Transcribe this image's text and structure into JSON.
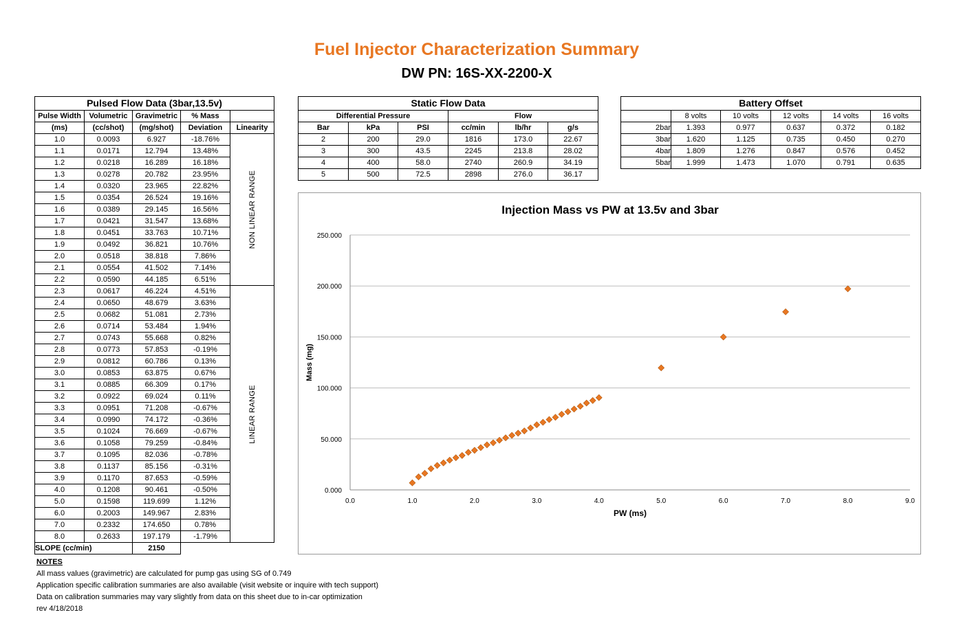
{
  "header": {
    "title": "Fuel Injector Characterization Summary",
    "subtitle": "DW PN: 16S-XX-2200-X"
  },
  "pulsed": {
    "title": "Pulsed Flow Data (3bar,13.5v)",
    "headers_top": [
      "Pulse Width",
      "Volumetric",
      "Gravimetric",
      "% Mass",
      ""
    ],
    "headers_bottom": [
      "(ms)",
      "(cc/shot)",
      "(mg/shot)",
      "Deviation",
      "Linearity"
    ],
    "non_linear_label": "NON LINEAR RANGE",
    "linear_label": "LINEAR RANGE",
    "rows": [
      [
        "1.0",
        "0.0093",
        "6.927",
        "-18.76%"
      ],
      [
        "1.1",
        "0.0171",
        "12.794",
        "13.48%"
      ],
      [
        "1.2",
        "0.0218",
        "16.289",
        "16.18%"
      ],
      [
        "1.3",
        "0.0278",
        "20.782",
        "23.95%"
      ],
      [
        "1.4",
        "0.0320",
        "23.965",
        "22.82%"
      ],
      [
        "1.5",
        "0.0354",
        "26.524",
        "19.16%"
      ],
      [
        "1.6",
        "0.0389",
        "29.145",
        "16.56%"
      ],
      [
        "1.7",
        "0.0421",
        "31.547",
        "13.68%"
      ],
      [
        "1.8",
        "0.0451",
        "33.763",
        "10.71%"
      ],
      [
        "1.9",
        "0.0492",
        "36.821",
        "10.76%"
      ],
      [
        "2.0",
        "0.0518",
        "38.818",
        "7.86%"
      ],
      [
        "2.1",
        "0.0554",
        "41.502",
        "7.14%"
      ],
      [
        "2.2",
        "0.0590",
        "44.185",
        "6.51%"
      ],
      [
        "2.3",
        "0.0617",
        "46.224",
        "4.51%"
      ],
      [
        "2.4",
        "0.0650",
        "48.679",
        "3.63%"
      ],
      [
        "2.5",
        "0.0682",
        "51.081",
        "2.73%"
      ],
      [
        "2.6",
        "0.0714",
        "53.484",
        "1.94%"
      ],
      [
        "2.7",
        "0.0743",
        "55.668",
        "0.82%"
      ],
      [
        "2.8",
        "0.0773",
        "57.853",
        "-0.19%"
      ],
      [
        "2.9",
        "0.0812",
        "60.786",
        "0.13%"
      ],
      [
        "3.0",
        "0.0853",
        "63.875",
        "0.67%"
      ],
      [
        "3.1",
        "0.0885",
        "66.309",
        "0.17%"
      ],
      [
        "3.2",
        "0.0922",
        "69.024",
        "0.11%"
      ],
      [
        "3.3",
        "0.0951",
        "71.208",
        "-0.67%"
      ],
      [
        "3.4",
        "0.0990",
        "74.172",
        "-0.36%"
      ],
      [
        "3.5",
        "0.1024",
        "76.669",
        "-0.67%"
      ],
      [
        "3.6",
        "0.1058",
        "79.259",
        "-0.84%"
      ],
      [
        "3.7",
        "0.1095",
        "82.036",
        "-0.78%"
      ],
      [
        "3.8",
        "0.1137",
        "85.156",
        "-0.31%"
      ],
      [
        "3.9",
        "0.1170",
        "87.653",
        "-0.59%"
      ],
      [
        "4.0",
        "0.1208",
        "90.461",
        "-0.50%"
      ],
      [
        "5.0",
        "0.1598",
        "119.699",
        "1.12%"
      ],
      [
        "6.0",
        "0.2003",
        "149.967",
        "2.83%"
      ],
      [
        "7.0",
        "0.2332",
        "174.650",
        "0.78%"
      ],
      [
        "8.0",
        "0.2633",
        "197.179",
        "-1.79%"
      ]
    ],
    "slope_label": "SLOPE (cc/min)",
    "slope_value": "2150"
  },
  "static": {
    "title": "Static Flow Data",
    "group_dp": "Differential Pressure",
    "group_flow": "Flow",
    "headers": [
      "Bar",
      "kPa",
      "PSI",
      "cc/min",
      "lb/hr",
      "g/s"
    ],
    "rows": [
      [
        "2",
        "200",
        "29.0",
        "1816",
        "173.0",
        "22.67"
      ],
      [
        "3",
        "300",
        "43.5",
        "2245",
        "213.8",
        "28.02"
      ],
      [
        "4",
        "400",
        "58.0",
        "2740",
        "260.9",
        "34.19"
      ],
      [
        "5",
        "500",
        "72.5",
        "2898",
        "276.0",
        "36.17"
      ]
    ]
  },
  "battery": {
    "title": "Battery Offset",
    "headers": [
      "",
      "8 volts",
      "10 volts",
      "12 volts",
      "14 volts",
      "16 volts"
    ],
    "rows": [
      [
        "2bar",
        "1.393",
        "0.977",
        "0.637",
        "0.372",
        "0.182"
      ],
      [
        "3bar",
        "1.620",
        "1.125",
        "0.735",
        "0.450",
        "0.270"
      ],
      [
        "4bar",
        "1.809",
        "1.276",
        "0.847",
        "0.576",
        "0.452"
      ],
      [
        "5bar",
        "1.999",
        "1.473",
        "1.070",
        "0.791",
        "0.635"
      ]
    ]
  },
  "notes": {
    "heading": "NOTES",
    "lines": [
      "All mass values (gravimetric) are calculated for pump gas using SG of 0.749",
      "Application specific calibration summaries are also available (visit website or inquire with tech support)",
      "Data on calibration summaries may vary slightly from data on this sheet due to in-car optimization",
      "rev 4/18/2018"
    ]
  },
  "chart_data": {
    "type": "scatter",
    "title": "Injection Mass vs PW at 13.5v and 3bar",
    "xlabel": "PW (ms)",
    "ylabel": "Mass (mg)",
    "xlim": [
      0,
      9
    ],
    "ylim": [
      0,
      250
    ],
    "xticks": [
      "0.0",
      "1.0",
      "2.0",
      "3.0",
      "4.0",
      "5.0",
      "6.0",
      "7.0",
      "8.0",
      "9.0"
    ],
    "yticks": [
      "0.000",
      "50.000",
      "100.000",
      "150.000",
      "200.000",
      "250.000"
    ],
    "grid": true,
    "marker_color": "#e87722",
    "x": [
      1.0,
      1.1,
      1.2,
      1.3,
      1.4,
      1.5,
      1.6,
      1.7,
      1.8,
      1.9,
      2.0,
      2.1,
      2.2,
      2.3,
      2.4,
      2.5,
      2.6,
      2.7,
      2.8,
      2.9,
      3.0,
      3.1,
      3.2,
      3.3,
      3.4,
      3.5,
      3.6,
      3.7,
      3.8,
      3.9,
      4.0,
      5.0,
      6.0,
      7.0,
      8.0
    ],
    "y": [
      6.927,
      12.794,
      16.289,
      20.782,
      23.965,
      26.524,
      29.145,
      31.547,
      33.763,
      36.821,
      38.818,
      41.502,
      44.185,
      46.224,
      48.679,
      51.081,
      53.484,
      55.668,
      57.853,
      60.786,
      63.875,
      66.309,
      69.024,
      71.208,
      74.172,
      76.669,
      79.259,
      82.036,
      85.156,
      87.653,
      90.461,
      119.699,
      149.967,
      174.65,
      197.179
    ]
  }
}
